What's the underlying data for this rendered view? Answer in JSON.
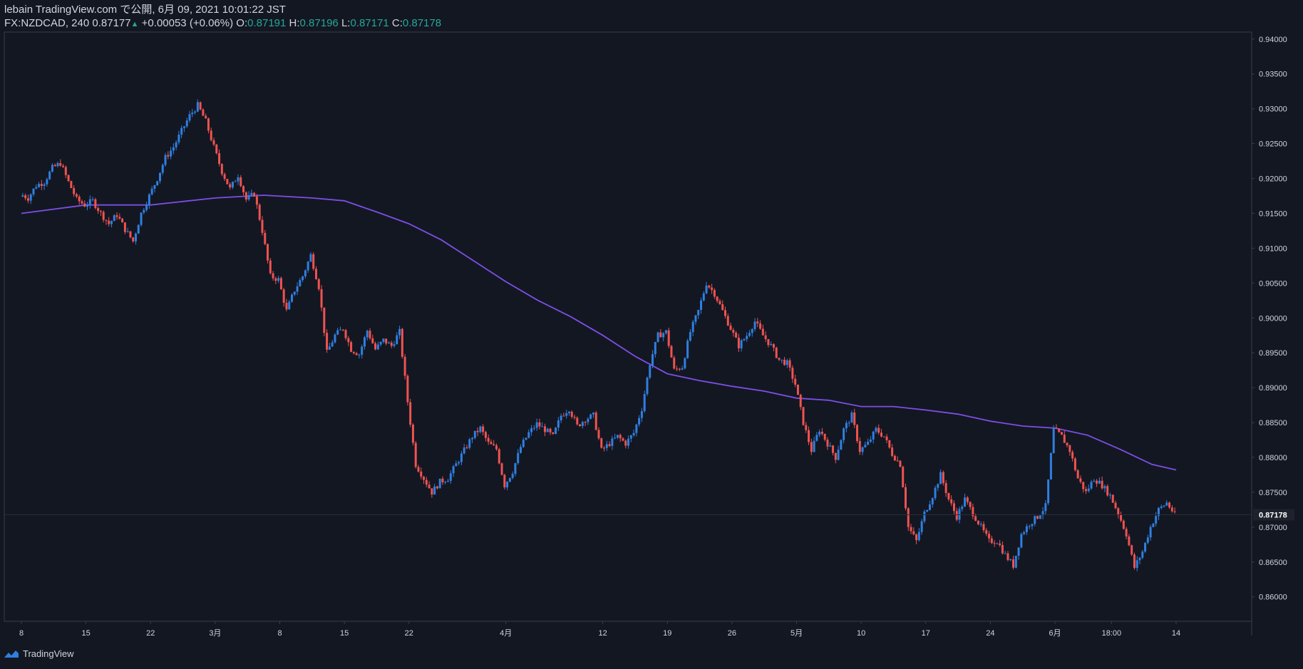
{
  "header": {
    "publisher": "lebain TradingView.com で公開, 6月 09, 2021 10:01:22 JST",
    "symbol": "FX:NZDCAD, 240",
    "last": "0.87177",
    "change": "+0.00053 (+0.06%)",
    "o_label": "O:",
    "o_value": "0.87191",
    "h_label": "H:",
    "h_value": "0.87196",
    "l_label": "L:",
    "l_value": "0.87171",
    "c_label": "C:",
    "c_value": "0.87178"
  },
  "footer": {
    "brand": "TradingView"
  },
  "colors": {
    "background": "#131722",
    "up": "#2f7fe0",
    "down": "#ef5350",
    "ma": "#7e4ee6",
    "axis_text": "#d1d4dc",
    "last_price_bg": "#1e222d"
  },
  "chart_data": {
    "type": "candlestick",
    "symbol": "FX:NZDCAD",
    "timeframe": "240",
    "ylim": [
      0.8565,
      0.941
    ],
    "y_ticks": [
      "0.94000",
      "0.93500",
      "0.93000",
      "0.92500",
      "0.92000",
      "0.91500",
      "0.91000",
      "0.90500",
      "0.90000",
      "0.89500",
      "0.89000",
      "0.88500",
      "0.88000",
      "0.87500",
      "0.87000",
      "0.86500",
      "0.86000"
    ],
    "x_ticks": [
      "8",
      "15",
      "22",
      "3月",
      "8",
      "15",
      "22",
      "4月",
      "12",
      "19",
      "26",
      "5月",
      "10",
      "17",
      "24",
      "6月",
      "18:00",
      "14"
    ],
    "x_tick_index": [
      0,
      8,
      16,
      24,
      32,
      40,
      48,
      60,
      72,
      80,
      88,
      96,
      104,
      112,
      120,
      128,
      135,
      143
    ],
    "last_price_label": "0.87178",
    "close_path": [
      [
        0,
        0.9178
      ],
      [
        1,
        0.9172
      ],
      [
        2,
        0.919
      ],
      [
        3,
        0.9195
      ],
      [
        4,
        0.9215
      ],
      [
        5,
        0.9222
      ],
      [
        6,
        0.9195
      ],
      [
        7,
        0.917
      ],
      [
        8,
        0.9162
      ],
      [
        9,
        0.9168
      ],
      [
        10,
        0.915
      ],
      [
        11,
        0.9135
      ],
      [
        12,
        0.9148
      ],
      [
        13,
        0.9127
      ],
      [
        14,
        0.911
      ],
      [
        15,
        0.915
      ],
      [
        16,
        0.9175
      ],
      [
        17,
        0.92
      ],
      [
        18,
        0.923
      ],
      [
        19,
        0.9245
      ],
      [
        20,
        0.9268
      ],
      [
        21,
        0.929
      ],
      [
        22,
        0.9305
      ],
      [
        23,
        0.9282
      ],
      [
        24,
        0.9245
      ],
      [
        25,
        0.921
      ],
      [
        26,
        0.9185
      ],
      [
        27,
        0.9205
      ],
      [
        28,
        0.917
      ],
      [
        29,
        0.9178
      ],
      [
        30,
        0.9125
      ],
      [
        31,
        0.906
      ],
      [
        32,
        0.9055
      ],
      [
        33,
        0.901
      ],
      [
        34,
        0.904
      ],
      [
        35,
        0.906
      ],
      [
        36,
        0.909
      ],
      [
        37,
        0.9045
      ],
      [
        38,
        0.895
      ],
      [
        39,
        0.8975
      ],
      [
        40,
        0.8985
      ],
      [
        41,
        0.8955
      ],
      [
        42,
        0.8948
      ],
      [
        43,
        0.8982
      ],
      [
        44,
        0.8955
      ],
      [
        45,
        0.8968
      ],
      [
        46,
        0.896
      ],
      [
        47,
        0.898
      ],
      [
        48,
        0.888
      ],
      [
        49,
        0.879
      ],
      [
        50,
        0.877
      ],
      [
        51,
        0.875
      ],
      [
        52,
        0.8765
      ],
      [
        53,
        0.877
      ],
      [
        54,
        0.879
      ],
      [
        55,
        0.881
      ],
      [
        56,
        0.883
      ],
      [
        57,
        0.8842
      ],
      [
        58,
        0.882
      ],
      [
        59,
        0.8812
      ],
      [
        60,
        0.876
      ],
      [
        61,
        0.878
      ],
      [
        62,
        0.8815
      ],
      [
        63,
        0.8835
      ],
      [
        64,
        0.8848
      ],
      [
        65,
        0.884
      ],
      [
        66,
        0.883
      ],
      [
        67,
        0.886
      ],
      [
        68,
        0.887
      ],
      [
        69,
        0.8845
      ],
      [
        70,
        0.8855
      ],
      [
        71,
        0.886
      ],
      [
        72,
        0.881
      ],
      [
        73,
        0.882
      ],
      [
        74,
        0.883
      ],
      [
        75,
        0.882
      ],
      [
        76,
        0.8835
      ],
      [
        77,
        0.887
      ],
      [
        78,
        0.8935
      ],
      [
        79,
        0.8975
      ],
      [
        80,
        0.898
      ],
      [
        81,
        0.8925
      ],
      [
        82,
        0.893
      ],
      [
        83,
        0.898
      ],
      [
        84,
        0.901
      ],
      [
        85,
        0.905
      ],
      [
        86,
        0.9035
      ],
      [
        87,
        0.901
      ],
      [
        88,
        0.8985
      ],
      [
        89,
        0.896
      ],
      [
        90,
        0.8975
      ],
      [
        91,
        0.8995
      ],
      [
        92,
        0.8975
      ],
      [
        93,
        0.896
      ],
      [
        94,
        0.894
      ],
      [
        95,
        0.8935
      ],
      [
        96,
        0.8905
      ],
      [
        97,
        0.885
      ],
      [
        98,
        0.881
      ],
      [
        99,
        0.884
      ],
      [
        100,
        0.882
      ],
      [
        101,
        0.88
      ],
      [
        102,
        0.884
      ],
      [
        103,
        0.886
      ],
      [
        104,
        0.881
      ],
      [
        105,
        0.882
      ],
      [
        106,
        0.884
      ],
      [
        107,
        0.883
      ],
      [
        108,
        0.8805
      ],
      [
        109,
        0.879
      ],
      [
        110,
        0.87
      ],
      [
        111,
        0.868
      ],
      [
        112,
        0.872
      ],
      [
        113,
        0.8745
      ],
      [
        114,
        0.8775
      ],
      [
        115,
        0.874
      ],
      [
        116,
        0.8715
      ],
      [
        117,
        0.874
      ],
      [
        118,
        0.872
      ],
      [
        119,
        0.87
      ],
      [
        120,
        0.868
      ],
      [
        121,
        0.868
      ],
      [
        122,
        0.866
      ],
      [
        123,
        0.8645
      ],
      [
        124,
        0.869
      ],
      [
        125,
        0.8705
      ],
      [
        126,
        0.8715
      ],
      [
        127,
        0.873
      ],
      [
        128,
        0.884
      ],
      [
        129,
        0.883
      ],
      [
        130,
        0.881
      ],
      [
        131,
        0.877
      ],
      [
        132,
        0.875
      ],
      [
        133,
        0.877
      ],
      [
        134,
        0.876
      ],
      [
        135,
        0.8745
      ],
      [
        136,
        0.872
      ],
      [
        137,
        0.869
      ],
      [
        138,
        0.8642
      ],
      [
        139,
        0.8665
      ],
      [
        140,
        0.87
      ],
      [
        141,
        0.8725
      ],
      [
        142,
        0.8735
      ],
      [
        143,
        0.8718
      ]
    ],
    "ma_path": [
      [
        0,
        0.915
      ],
      [
        8,
        0.9162
      ],
      [
        16,
        0.9162
      ],
      [
        24,
        0.9172
      ],
      [
        30,
        0.9176
      ],
      [
        36,
        0.9172
      ],
      [
        40,
        0.9168
      ],
      [
        44,
        0.9152
      ],
      [
        48,
        0.9135
      ],
      [
        52,
        0.9112
      ],
      [
        56,
        0.9082
      ],
      [
        60,
        0.9052
      ],
      [
        64,
        0.9025
      ],
      [
        68,
        0.9002
      ],
      [
        72,
        0.8975
      ],
      [
        76,
        0.8945
      ],
      [
        80,
        0.892
      ],
      [
        84,
        0.891
      ],
      [
        88,
        0.8902
      ],
      [
        92,
        0.8895
      ],
      [
        96,
        0.8885
      ],
      [
        100,
        0.8882
      ],
      [
        104,
        0.8873
      ],
      [
        108,
        0.8873
      ],
      [
        112,
        0.8868
      ],
      [
        116,
        0.8862
      ],
      [
        120,
        0.8852
      ],
      [
        124,
        0.8845
      ],
      [
        128,
        0.8842
      ],
      [
        132,
        0.8832
      ],
      [
        136,
        0.8812
      ],
      [
        140,
        0.879
      ],
      [
        143,
        0.8782
      ]
    ]
  }
}
